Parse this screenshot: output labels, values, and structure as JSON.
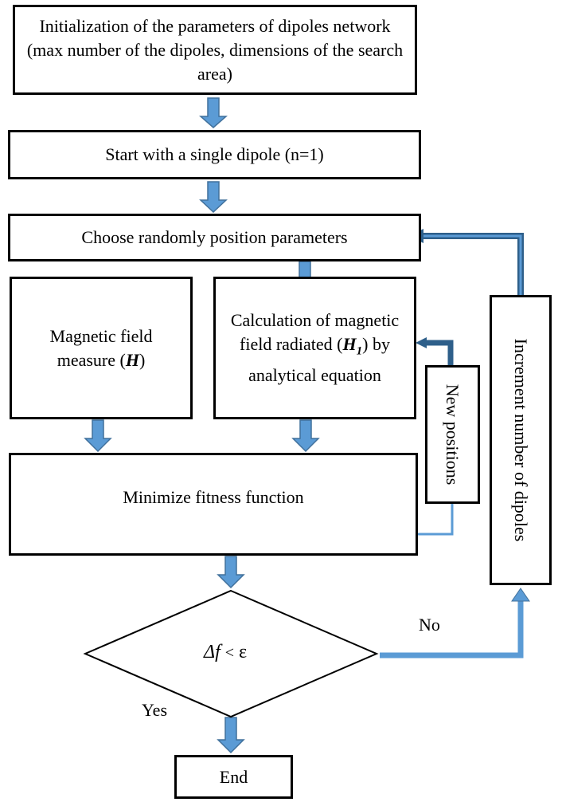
{
  "diagram": {
    "init_box": "Initialization of the parameters of dipoles network (max number of the dipoles, dimensions of the search area)",
    "start_box": "Start with a single dipole (n=1)",
    "choose_box": "Choose randomly position parameters",
    "measure_box": {
      "text": "Magnetic field measure (",
      "symbol": "H",
      "suffix": ")"
    },
    "calc_box": {
      "line1": "Calculation of magnetic field radiated (",
      "symbol": "H",
      "subscript": "1",
      "line2": ") by analytical equation"
    },
    "new_positions_box": "New positions",
    "increment_box": "Increment number of dipoles",
    "minimize_box": "Minimize fitness function",
    "decision": {
      "delta": "Δf",
      "op": "<",
      "epsilon": "ε"
    },
    "no_label": "No",
    "yes_label": "Yes",
    "end_box": "End"
  },
  "colors": {
    "arrow_fill": "#5b9bd5",
    "arrow_stroke": "#41719c",
    "line": "#2e5f8a"
  }
}
